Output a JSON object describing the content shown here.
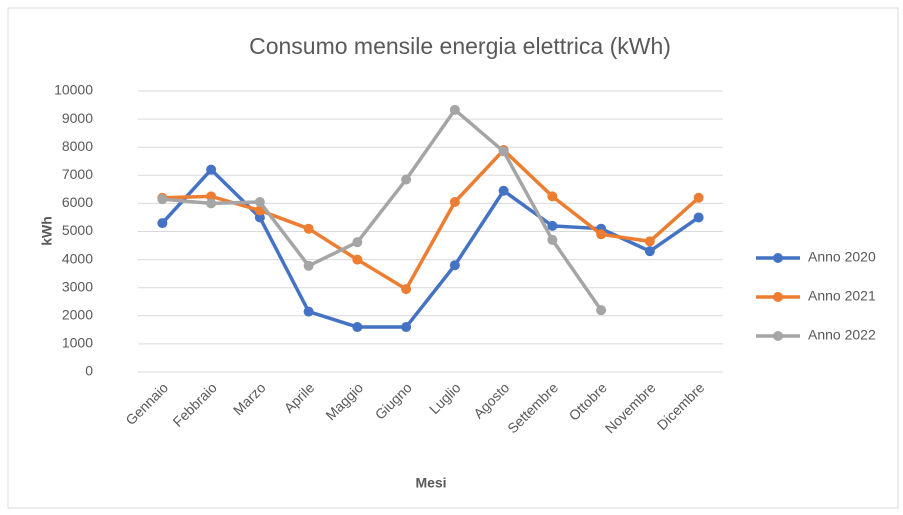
{
  "chart_data": {
    "type": "line",
    "title": "Consumo mensile energia elettrica (kWh)",
    "x_label": "Mesi",
    "y_label": "kWh",
    "categories": [
      "Gennaio",
      "Febbraio",
      "Marzo",
      "Aprile",
      "Maggio",
      "Giugno",
      "Luglio",
      "Agosto",
      "Settembre",
      "Ottobre",
      "Novembre",
      "Dicembre"
    ],
    "series": [
      {
        "name": "Anno 2020",
        "color": "#4472c4",
        "values": [
          5300,
          7200,
          5500,
          2150,
          1600,
          1600,
          3800,
          6450,
          5200,
          5100,
          4300,
          5500
        ]
      },
      {
        "name": "Anno 2021",
        "color": "#ed7d31",
        "values": [
          6200,
          6250,
          5750,
          5100,
          4000,
          2950,
          6050,
          7900,
          6250,
          4900,
          4650,
          6200
        ]
      },
      {
        "name": "Anno 2022",
        "color": "#a5a5a5",
        "values": [
          6150,
          6000,
          6050,
          3780,
          4620,
          6850,
          9330,
          7850,
          4700,
          2200,
          null,
          null
        ]
      }
    ],
    "ylim": [
      0,
      10000
    ],
    "yticks": [
      0,
      1000,
      2000,
      3000,
      4000,
      5000,
      6000,
      7000,
      8000,
      9000,
      10000
    ],
    "grid": true,
    "legend": "right"
  }
}
